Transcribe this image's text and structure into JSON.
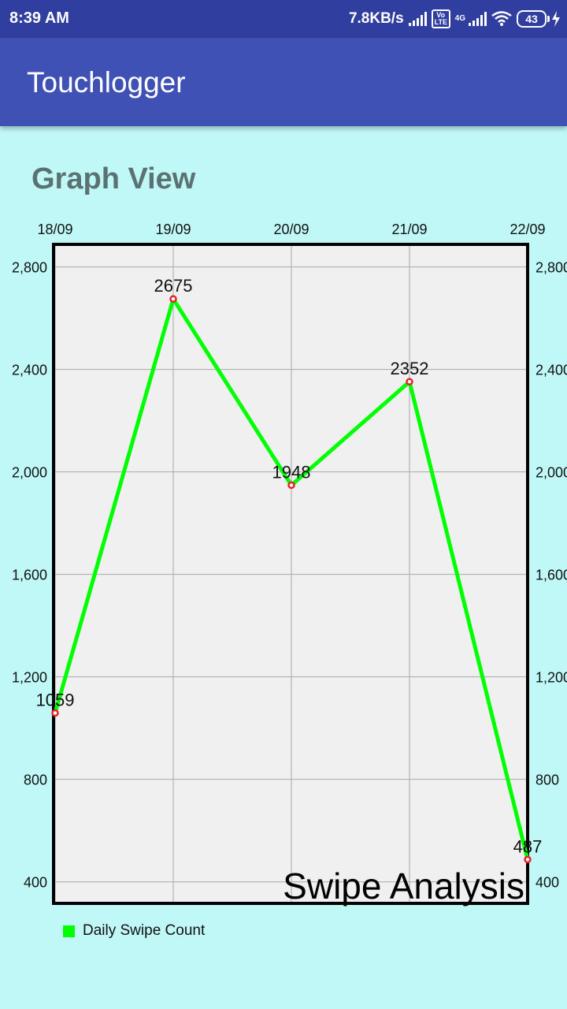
{
  "status_bar": {
    "time": "8:39 AM",
    "speed": "7.8KB/s",
    "volte": "Vo LTE",
    "network": "4G",
    "battery": "43"
  },
  "app_bar": {
    "title": "Touchlogger"
  },
  "section_title": "Graph View",
  "colors": {
    "status_bar": "#303f9f",
    "app_bar": "#3f51b5",
    "background": "#c0f8f8",
    "plot_background": "#f0f0f0",
    "line": "#00ff00",
    "point": "#e8222a"
  },
  "chart_data": {
    "type": "line",
    "categories": [
      "18/09",
      "19/09",
      "20/09",
      "21/09",
      "22/09"
    ],
    "series": [
      {
        "name": "Daily Swipe Count",
        "values": [
          1059,
          2675,
          1948,
          2352,
          487
        ]
      }
    ],
    "data_labels": [
      "1059",
      "2675",
      "1948",
      "2352",
      "487"
    ],
    "y_ticks": [
      "400",
      "800",
      "1,200",
      "1,600",
      "2,000",
      "2,400",
      "2,800"
    ],
    "y_tick_values": [
      400,
      800,
      1200,
      1600,
      2000,
      2400,
      2800
    ],
    "ylim": [
      316,
      2888
    ],
    "description_text": "Swipe Analysis",
    "grid": true,
    "legend": "bottom-left",
    "dual_y_axis": true
  }
}
